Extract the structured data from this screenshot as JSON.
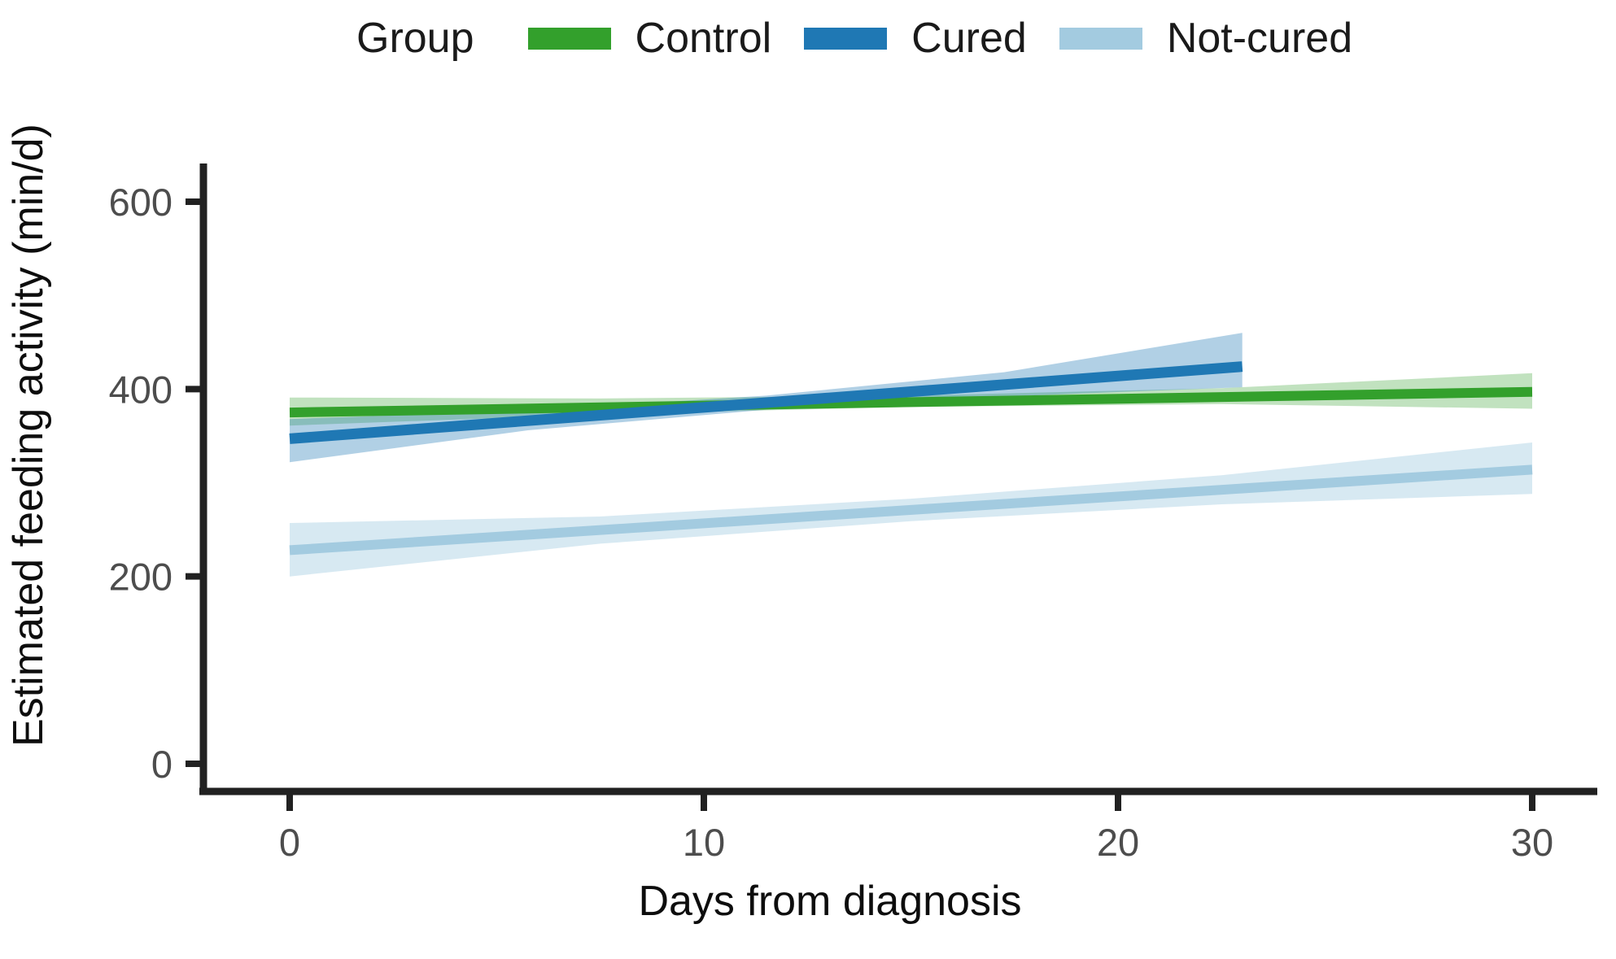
{
  "chart_data": {
    "type": "line",
    "title": "",
    "xlabel": "Days from diagnosis",
    "ylabel": "Estimated feeding activity (min/d)",
    "xlim": [
      0,
      30
    ],
    "ylim": [
      0,
      650
    ],
    "x_ticks": [
      0,
      10,
      20,
      30
    ],
    "y_ticks": [
      0,
      200,
      400,
      600
    ],
    "grid": false,
    "legend": {
      "title": "Group",
      "position": "top",
      "entries": [
        "Control",
        "Cured",
        "Not-cured"
      ]
    },
    "series": [
      {
        "id": "control",
        "name": "Control",
        "color": "#33a02c",
        "band_color": "rgba(51,160,44,0.30)",
        "line_width": 12,
        "line": [
          [
            0,
            375
          ],
          [
            30,
            397
          ]
        ],
        "band": [
          [
            0,
            361,
            391
          ],
          [
            7.5,
            373,
            390
          ],
          [
            15,
            381,
            393
          ],
          [
            22.5,
            384,
            401
          ],
          [
            30,
            379,
            417
          ]
        ]
      },
      {
        "id": "cured",
        "name": "Cured",
        "color": "#1f78b4",
        "band_color": "rgba(31,120,180,0.35)",
        "line_width": 13,
        "line": [
          [
            0,
            347
          ],
          [
            23,
            424
          ]
        ],
        "band": [
          [
            0,
            322,
            368
          ],
          [
            5.75,
            356,
            377
          ],
          [
            11.5,
            378,
            393
          ],
          [
            17.25,
            392,
            418
          ],
          [
            23,
            402,
            460
          ]
        ]
      },
      {
        "id": "notcured",
        "name": "Not-cured",
        "color": "#a3cbe0",
        "band_color": "rgba(166,206,227,0.45)",
        "line_width": 12,
        "line": [
          [
            0,
            228
          ],
          [
            30,
            314
          ]
        ],
        "band": [
          [
            0,
            200,
            257
          ],
          [
            7.5,
            235,
            264
          ],
          [
            15,
            259,
            283
          ],
          [
            22.5,
            277,
            308
          ],
          [
            30,
            288,
            343
          ]
        ]
      }
    ]
  }
}
